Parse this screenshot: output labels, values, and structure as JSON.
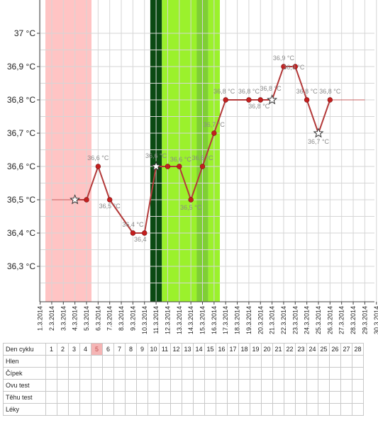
{
  "colors": {
    "menstruation": "#ffc4c4",
    "peak_dark": "#0b4a12",
    "fertile": "#9bf12c",
    "fertile_mid": "#7fcf35",
    "line": "#b33a3a",
    "point": "#c41e1e",
    "plain_line": "#c86060",
    "grid": "#d6d6d6"
  },
  "chart_data": {
    "type": "line",
    "y_unit": "°C",
    "ylim": [
      36.2,
      37.1
    ],
    "y_ticks": [
      "37 °C",
      "36,9 °C",
      "36,8 °C",
      "36,7 °C",
      "36,6 °C",
      "36,5 °C",
      "36,4 °C",
      "36,3 °C"
    ],
    "y_tick_values": [
      37.0,
      36.9,
      36.8,
      36.7,
      36.6,
      36.5,
      36.4,
      36.3
    ],
    "x_dates": [
      "1.3.2014",
      "2.3.2014",
      "3.3.2014",
      "4.3.2014",
      "5.3.2014",
      "6.3.2014",
      "7.3.2014",
      "8.3.2014",
      "9.3.2014",
      "10.3.2014",
      "11.3.2014",
      "12.3.2014",
      "13.3.2014",
      "14.3.2014",
      "15.3.2014",
      "16.3.2014",
      "17.3.2014",
      "18.3.2014",
      "19.3.2014",
      "20.3.2014",
      "21.3.2014",
      "22.3.2014",
      "23.3.2014",
      "24.3.2014",
      "25.3.2014",
      "26.3.2014",
      "27.3.2014",
      "28.3.2014",
      "29.3.2014",
      "30.3.2014"
    ],
    "grid": true,
    "plain_segments": [
      {
        "from_day": 2,
        "to_day": 4,
        "value": 36.5
      },
      {
        "from_day": 26,
        "to_day": 29,
        "value": 36.8
      }
    ],
    "series": [
      {
        "points": [
          {
            "day": 4,
            "value": 36.5,
            "marker": "star",
            "label": ""
          },
          {
            "day": 5,
            "value": 36.5,
            "marker": "dot",
            "label": ""
          },
          {
            "day": 6,
            "value": 36.6,
            "marker": "dot",
            "label": "36,6 °C"
          },
          {
            "day": 7,
            "value": 36.5,
            "marker": "dot",
            "label": "36,5 °C"
          },
          {
            "day": 9,
            "value": 36.4,
            "marker": "dot",
            "label": "36,4 °C"
          },
          {
            "day": 10,
            "value": 36.4,
            "marker": "dot",
            "label": "36,4"
          },
          {
            "day": 11,
            "value": 36.6,
            "marker": "star",
            "label": "36,6 °C"
          },
          {
            "day": 12,
            "value": 36.6,
            "marker": "dot",
            "label": ""
          },
          {
            "day": 13,
            "value": 36.6,
            "marker": "dot",
            "label": "36,6 °C"
          },
          {
            "day": 14,
            "value": 36.5,
            "marker": "dot",
            "label": "36,5 °C"
          },
          {
            "day": 15,
            "value": 36.6,
            "marker": "dot",
            "label": "36,6 °C"
          },
          {
            "day": 16,
            "value": 36.7,
            "marker": "dot",
            "label": "36,7 °C"
          },
          {
            "day": 17,
            "value": 36.8,
            "marker": "dot",
            "label": "36,8 °C"
          },
          {
            "day": 19,
            "value": 36.8,
            "marker": "dot",
            "label": "36,8 °C"
          },
          {
            "day": 20,
            "value": 36.8,
            "marker": "dot",
            "label": "36,8 °C"
          },
          {
            "day": 21,
            "value": 36.8,
            "marker": "star",
            "label": "36,8 °C"
          },
          {
            "day": 22,
            "value": 36.9,
            "marker": "dot",
            "label": "36,9 °C"
          },
          {
            "day": 23,
            "value": 36.9,
            "marker": "dot",
            "label": "36,9 °C"
          },
          {
            "day": 24,
            "value": 36.8,
            "marker": "dot",
            "label": "36,8 °C"
          },
          {
            "day": 25,
            "value": 36.7,
            "marker": "star",
            "label": "36,7 °C"
          },
          {
            "day": 26,
            "value": 36.8,
            "marker": "dot",
            "label": "36,8 °C"
          }
        ]
      }
    ],
    "bands": [
      {
        "name": "menstruation",
        "from_day": 1,
        "to_day": 5,
        "color_key": "menstruation"
      },
      {
        "name": "peak",
        "from_day": 10.5,
        "to_day": 11.5,
        "color_key": "peak_dark"
      },
      {
        "name": "fertile",
        "from_day": 11.5,
        "to_day": 15.5,
        "color_key": "fertile"
      },
      {
        "name": "fertile-mid",
        "from_day": 14.5,
        "to_day": 15.5,
        "color_key": "fertile_mid"
      },
      {
        "name": "fertile-end",
        "from_day": 15.5,
        "to_day": 16.5,
        "color_key": "fertile"
      }
    ]
  },
  "table": {
    "header_label": "Den cyklu",
    "days": [
      "1",
      "2",
      "3",
      "4",
      "5",
      "6",
      "7",
      "8",
      "9",
      "10",
      "11",
      "12",
      "13",
      "14",
      "15",
      "16",
      "17",
      "18",
      "19",
      "20",
      "21",
      "22",
      "23",
      "24",
      "25",
      "26",
      "27",
      "28"
    ],
    "highlight_day_index": 4,
    "rows": [
      "Hlen",
      "Čípek",
      "Ovu test",
      "Těhu test",
      "Léky"
    ]
  }
}
